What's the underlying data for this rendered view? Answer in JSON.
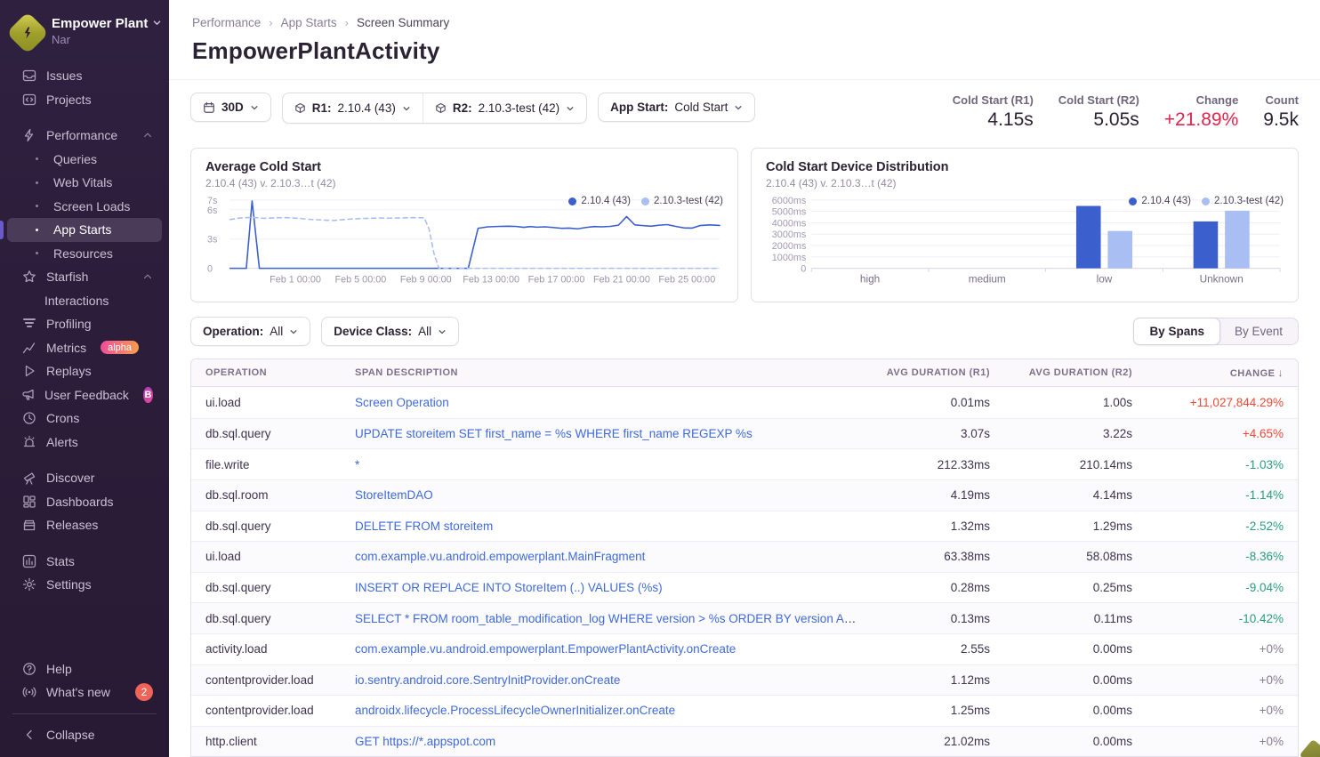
{
  "colors": {
    "series_primary": "#3b5fcc",
    "series_secondary": "#a9bef2",
    "header_change_red": "#e0244c",
    "table_red": "#ef4836",
    "table_green": "#2b9c7e",
    "muted_change": "#867c94",
    "link_blue": "#3f6ad8"
  },
  "sidebar": {
    "org": {
      "name": "Empower Plant",
      "subtitle": "Nar"
    },
    "items": [
      {
        "icon": "issues-icon",
        "label": "Issues"
      },
      {
        "icon": "projects-icon",
        "label": "Projects"
      },
      {
        "gap": true
      },
      {
        "icon": "lightning-icon",
        "label": "Performance",
        "chevron": "up"
      },
      {
        "sub": true,
        "bullet": true,
        "label": "Queries"
      },
      {
        "sub": true,
        "bullet": true,
        "label": "Web Vitals"
      },
      {
        "sub": true,
        "bullet": true,
        "label": "Screen Loads"
      },
      {
        "sub": true,
        "bullet": true,
        "label": "App Starts",
        "active": true
      },
      {
        "sub": true,
        "bullet": true,
        "label": "Resources"
      },
      {
        "icon": "star-icon",
        "label": "Starfish",
        "chevron": "up"
      },
      {
        "sub": true,
        "bullet": false,
        "label": "Interactions"
      },
      {
        "icon": "profiling-icon",
        "label": "Profiling"
      },
      {
        "icon": "metrics-icon",
        "label": "Metrics",
        "badge": {
          "text": "alpha",
          "type": "alpha"
        }
      },
      {
        "icon": "replays-icon",
        "label": "Replays"
      },
      {
        "icon": "megaphone-icon",
        "label": "User Feedback",
        "badge": {
          "text": "B",
          "type": "beta"
        }
      },
      {
        "icon": "crons-icon",
        "label": "Crons"
      },
      {
        "icon": "alerts-icon",
        "label": "Alerts"
      },
      {
        "gap": true
      },
      {
        "icon": "discover-icon",
        "label": "Discover"
      },
      {
        "icon": "dashboards-icon",
        "label": "Dashboards"
      },
      {
        "icon": "releases-icon",
        "label": "Releases"
      },
      {
        "gap": true
      },
      {
        "icon": "stats-icon",
        "label": "Stats"
      },
      {
        "icon": "settings-icon",
        "label": "Settings"
      }
    ],
    "footer": [
      {
        "icon": "help-icon",
        "label": "Help"
      },
      {
        "icon": "broadcast-icon",
        "label": "What's new",
        "badge": {
          "text": "2",
          "type": "red"
        }
      },
      {
        "divider": true
      },
      {
        "icon": "collapse-icon",
        "label": "Collapse"
      }
    ]
  },
  "breadcrumb": [
    "Performance",
    "App Starts",
    "Screen Summary"
  ],
  "page_title": "EmpowerPlantActivity",
  "filters": {
    "date": {
      "label": "30D"
    },
    "r1": {
      "label": "R1:",
      "value": "2.10.4 (43)"
    },
    "r2": {
      "label": "R2:",
      "value": "2.10.3-test (42)"
    },
    "app_start": {
      "label": "App Start:",
      "value": "Cold Start"
    }
  },
  "header_stats": [
    {
      "label": "Cold Start (R1)",
      "value": "4.15s"
    },
    {
      "label": "Cold Start (R2)",
      "value": "5.05s"
    },
    {
      "label": "Change",
      "value": "+21.89%",
      "color": "red"
    },
    {
      "label": "Count",
      "value": "9.5k"
    }
  ],
  "chart_data": [
    {
      "type": "line",
      "title": "Average Cold Start",
      "subtitle": "2.10.4 (43) v. 2.10.3…t (42)",
      "legend": [
        "2.10.4 (43)",
        "2.10.3-test (42)"
      ],
      "legend_position": "top-right",
      "grid": true,
      "ylabel": "seconds",
      "ylim": [
        0,
        7
      ],
      "y_ticks": [
        {
          "v": 0,
          "label": "0"
        },
        {
          "v": 3,
          "label": "3s"
        },
        {
          "v": 6,
          "label": "6s"
        },
        {
          "v": 7,
          "label": "7s"
        }
      ],
      "xlim_days": [
        0,
        30
      ],
      "x_ticks": [
        {
          "d": 4,
          "label": "Feb 1 00:00"
        },
        {
          "d": 8,
          "label": "Feb 5 00:00"
        },
        {
          "d": 12,
          "label": "Feb 9 00:00"
        },
        {
          "d": 16,
          "label": "Feb 13 00:00"
        },
        {
          "d": 20,
          "label": "Feb 17 00:00"
        },
        {
          "d": 24,
          "label": "Feb 21 00:00"
        },
        {
          "d": 28,
          "label": "Feb 25 00:00"
        }
      ],
      "series": [
        {
          "name": "2.10.4 (43)",
          "style": "solid",
          "points": [
            [
              0,
              0
            ],
            [
              1.0,
              0
            ],
            [
              1.35,
              6.9
            ],
            [
              1.8,
              0
            ],
            [
              4,
              0
            ],
            [
              8,
              0
            ],
            [
              12,
              0
            ],
            [
              14.6,
              0
            ],
            [
              15.2,
              4.1
            ],
            [
              15.8,
              4.25
            ],
            [
              16.5,
              4.3
            ],
            [
              17,
              4.32
            ],
            [
              17.5,
              4.3
            ],
            [
              18,
              4.2
            ],
            [
              18.4,
              4.28
            ],
            [
              18.8,
              4.22
            ],
            [
              19.3,
              4.25
            ],
            [
              19.8,
              4.18
            ],
            [
              20.3,
              4.1
            ],
            [
              20.8,
              4.12
            ],
            [
              21.3,
              4.05
            ],
            [
              21.8,
              4.18
            ],
            [
              22.3,
              4.28
            ],
            [
              22.8,
              4.25
            ],
            [
              23.3,
              4.3
            ],
            [
              23.8,
              4.42
            ],
            [
              24.3,
              5.3
            ],
            [
              24.8,
              4.45
            ],
            [
              25.3,
              4.38
            ],
            [
              25.8,
              4.32
            ],
            [
              26.3,
              4.42
            ],
            [
              26.8,
              4.48
            ],
            [
              27.3,
              4.3
            ],
            [
              27.8,
              4.15
            ],
            [
              28.3,
              4.12
            ],
            [
              28.8,
              4.38
            ],
            [
              29.4,
              4.45
            ],
            [
              30,
              4.4
            ]
          ]
        },
        {
          "name": "2.10.3-test (42)",
          "style": "dashed",
          "points": [
            [
              0,
              5.0
            ],
            [
              0.7,
              5.18
            ],
            [
              1.4,
              5.22
            ],
            [
              2.1,
              5.12
            ],
            [
              2.8,
              5.18
            ],
            [
              3.5,
              5.2
            ],
            [
              4.2,
              5.12
            ],
            [
              4.9,
              5.02
            ],
            [
              5.6,
              4.95
            ],
            [
              6.3,
              4.9
            ],
            [
              7,
              5.0
            ],
            [
              7.7,
              5.08
            ],
            [
              8.4,
              5.12
            ],
            [
              9.1,
              5.15
            ],
            [
              9.8,
              5.14
            ],
            [
              10.5,
              5.16
            ],
            [
              11.2,
              5.2
            ],
            [
              11.9,
              5.18
            ],
            [
              12.2,
              4.0
            ],
            [
              12.5,
              1.5
            ],
            [
              12.8,
              0
            ],
            [
              13.5,
              0
            ],
            [
              15,
              0
            ],
            [
              18,
              0
            ],
            [
              22,
              0
            ],
            [
              26,
              0
            ],
            [
              30,
              0
            ]
          ]
        }
      ]
    },
    {
      "type": "bar",
      "title": "Cold Start Device Distribution",
      "subtitle": "2.10.4 (43) v. 2.10.3…t (42)",
      "legend": [
        "2.10.4 (43)",
        "2.10.3-test (42)"
      ],
      "legend_position": "top-right",
      "grid": true,
      "ylabel": "ms",
      "ylim": [
        0,
        6000
      ],
      "y_ticks": [
        {
          "v": 0,
          "label": "0"
        },
        {
          "v": 1000,
          "label": "1000ms"
        },
        {
          "v": 2000,
          "label": "2000ms"
        },
        {
          "v": 3000,
          "label": "3000ms"
        },
        {
          "v": 4000,
          "label": "4000ms"
        },
        {
          "v": 5000,
          "label": "5000ms"
        },
        {
          "v": 6000,
          "label": "6000ms"
        }
      ],
      "categories": [
        "high",
        "medium",
        "low",
        "Unknown"
      ],
      "series": [
        {
          "name": "2.10.4 (43)",
          "values": [
            0,
            0,
            5480,
            4120
          ]
        },
        {
          "name": "2.10.3-test (42)",
          "values": [
            0,
            0,
            3280,
            5060
          ]
        }
      ]
    }
  ],
  "filters2": {
    "operation": {
      "label": "Operation:",
      "value": "All"
    },
    "device_class": {
      "label": "Device Class:",
      "value": "All"
    }
  },
  "view_toggle": {
    "options": [
      "By Spans",
      "By Event"
    ],
    "active": 0
  },
  "table": {
    "columns": [
      {
        "label": "OPERATION"
      },
      {
        "label": "SPAN DESCRIPTION"
      },
      {
        "label": "AVG DURATION (R1)",
        "align": "right"
      },
      {
        "label": "AVG DURATION (R2)",
        "align": "right"
      },
      {
        "label": "CHANGE",
        "align": "right",
        "sort": "desc"
      }
    ],
    "rows": [
      {
        "op": "ui.load",
        "desc": "Screen Operation",
        "r1": "0.01ms",
        "r2": "1.00s",
        "change": "+11,027,844.29%"
      },
      {
        "op": "db.sql.query",
        "desc": "UPDATE storeitem SET first_name = %s WHERE first_name REGEXP %s",
        "r1": "3.07s",
        "r2": "3.22s",
        "change": "+4.65%"
      },
      {
        "op": "file.write",
        "desc": "*",
        "r1": "212.33ms",
        "r2": "210.14ms",
        "change": "-1.03%"
      },
      {
        "op": "db.sql.room",
        "desc": "StoreItemDAO",
        "r1": "4.19ms",
        "r2": "4.14ms",
        "change": "-1.14%"
      },
      {
        "op": "db.sql.query",
        "desc": "DELETE FROM storeitem",
        "r1": "1.32ms",
        "r2": "1.29ms",
        "change": "-2.52%"
      },
      {
        "op": "ui.load",
        "desc": "com.example.vu.android.empowerplant.MainFragment",
        "r1": "63.38ms",
        "r2": "58.08ms",
        "change": "-8.36%"
      },
      {
        "op": "db.sql.query",
        "desc": "INSERT OR REPLACE INTO StoreItem (..) VALUES (%s)",
        "r1": "0.28ms",
        "r2": "0.25ms",
        "change": "-9.04%"
      },
      {
        "op": "db.sql.query",
        "desc": "SELECT * FROM room_table_modification_log WHERE version > %s ORDER BY version ASC",
        "r1": "0.13ms",
        "r2": "0.11ms",
        "change": "-10.42%"
      },
      {
        "op": "activity.load",
        "desc": "com.example.vu.android.empowerplant.EmpowerPlantActivity.onCreate",
        "r1": "2.55s",
        "r2": "0.00ms",
        "change": "+0%"
      },
      {
        "op": "contentprovider.load",
        "desc": "io.sentry.android.core.SentryInitProvider.onCreate",
        "r1": "1.12ms",
        "r2": "0.00ms",
        "change": "+0%"
      },
      {
        "op": "contentprovider.load",
        "desc": "androidx.lifecycle.ProcessLifecycleOwnerInitializer.onCreate",
        "r1": "1.25ms",
        "r2": "0.00ms",
        "change": "+0%"
      },
      {
        "op": "http.client",
        "desc": "GET https://*.appspot.com",
        "r1": "21.02ms",
        "r2": "0.00ms",
        "change": "+0%"
      }
    ]
  }
}
